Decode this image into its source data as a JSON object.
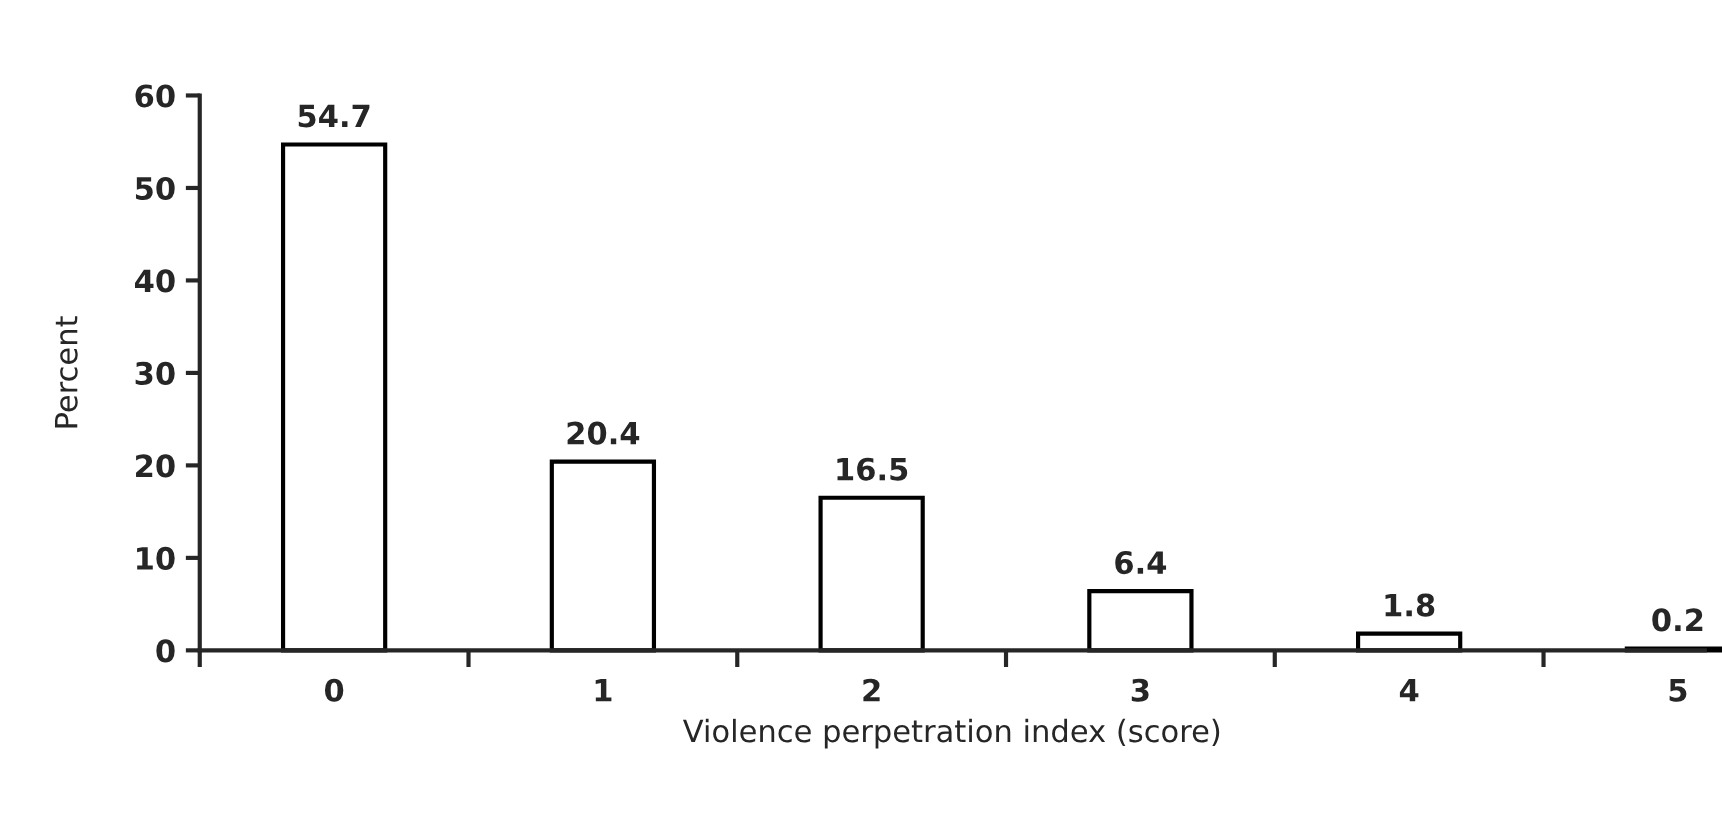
{
  "chart_data": {
    "type": "bar",
    "xlabel": "Violence perpetration index (score)",
    "ylabel": "Percent",
    "categories": [
      "0",
      "1",
      "2",
      "3",
      "4",
      "5"
    ],
    "values": [
      54.7,
      20.4,
      16.5,
      6.4,
      1.8,
      0.2
    ],
    "color": "#ffffff",
    "data_labels": true,
    "ylim": [
      0,
      60
    ],
    "yticks": [
      0,
      10,
      20,
      30,
      40,
      50,
      60
    ],
    "grid": false,
    "legend": false
  }
}
